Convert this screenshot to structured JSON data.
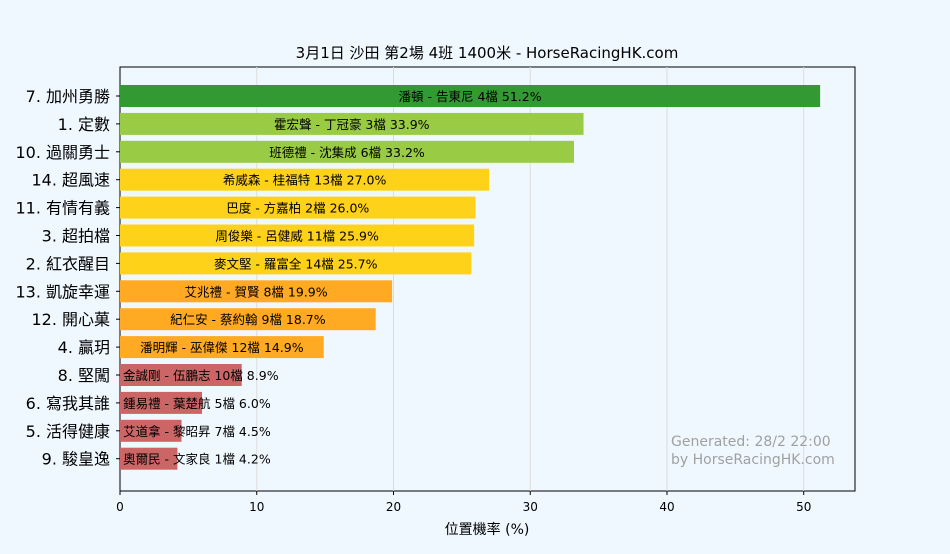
{
  "chart_data": {
    "type": "bar",
    "orientation": "horizontal",
    "title": "3月1日  沙田  第2場  4班  1400米 - HorseRacingHK.com",
    "xlabel": "位置機率 (%)",
    "ylabel": "",
    "xlim": [
      0,
      53.75
    ],
    "xticks": [
      "0",
      "10",
      "20",
      "30",
      "40",
      "50"
    ],
    "grid": "vertical",
    "categories": [
      "7. 加州勇勝",
      "1. 定數",
      "10. 過關勇士",
      "14. 超風速",
      "11. 有情有義",
      "3. 超拍檔",
      "2. 紅衣醒目",
      "13. 凱旋幸運",
      "12. 開心菓",
      "4. 贏玥",
      "8. 堅闖",
      "6. 寫我其誰",
      "5. 活得健康",
      "9. 駿皇逸"
    ],
    "values": [
      51.2,
      33.9,
      33.2,
      27.0,
      26.0,
      25.9,
      25.7,
      19.9,
      18.7,
      14.9,
      8.9,
      6.0,
      4.5,
      4.2
    ],
    "bar_labels": [
      "潘頓 - 告東尼 4檔  51.2%",
      "霍宏聲 - 丁冠豪 3檔  33.9%",
      "班德禮 - 沈集成 6檔  33.2%",
      "希威森 - 桂福特 13檔  27.0%",
      "巴度 - 方嘉柏 2檔  26.0%",
      "周俊樂 - 呂健威 11檔  25.9%",
      "麥文堅 - 羅富全 14檔  25.7%",
      "艾兆禮 - 賀賢 8檔  19.9%",
      "紀仁安 - 蔡約翰 9檔  18.7%",
      "潘明輝 - 巫偉傑 12檔  14.9%",
      "金誠剛 - 伍鵬志 10檔  8.9%",
      "鍾易禮 - 葉楚航 5檔  6.0%",
      "艾道拿 - 黎昭昇 7檔  4.5%",
      "奧爾民 - 文家良 1檔  4.2%"
    ],
    "colors": [
      "#339933",
      "#99cc44",
      "#99cc44",
      "#ffd21a",
      "#ffd21a",
      "#ffd21a",
      "#ffd21a",
      "#ffaa22",
      "#ffaa22",
      "#ffaa22",
      "#cc6666",
      "#cc6666",
      "#cc6666",
      "#cc6666"
    ],
    "watermark": [
      "Generated: 28/2 22:00",
      "by HorseRacingHK.com"
    ]
  }
}
